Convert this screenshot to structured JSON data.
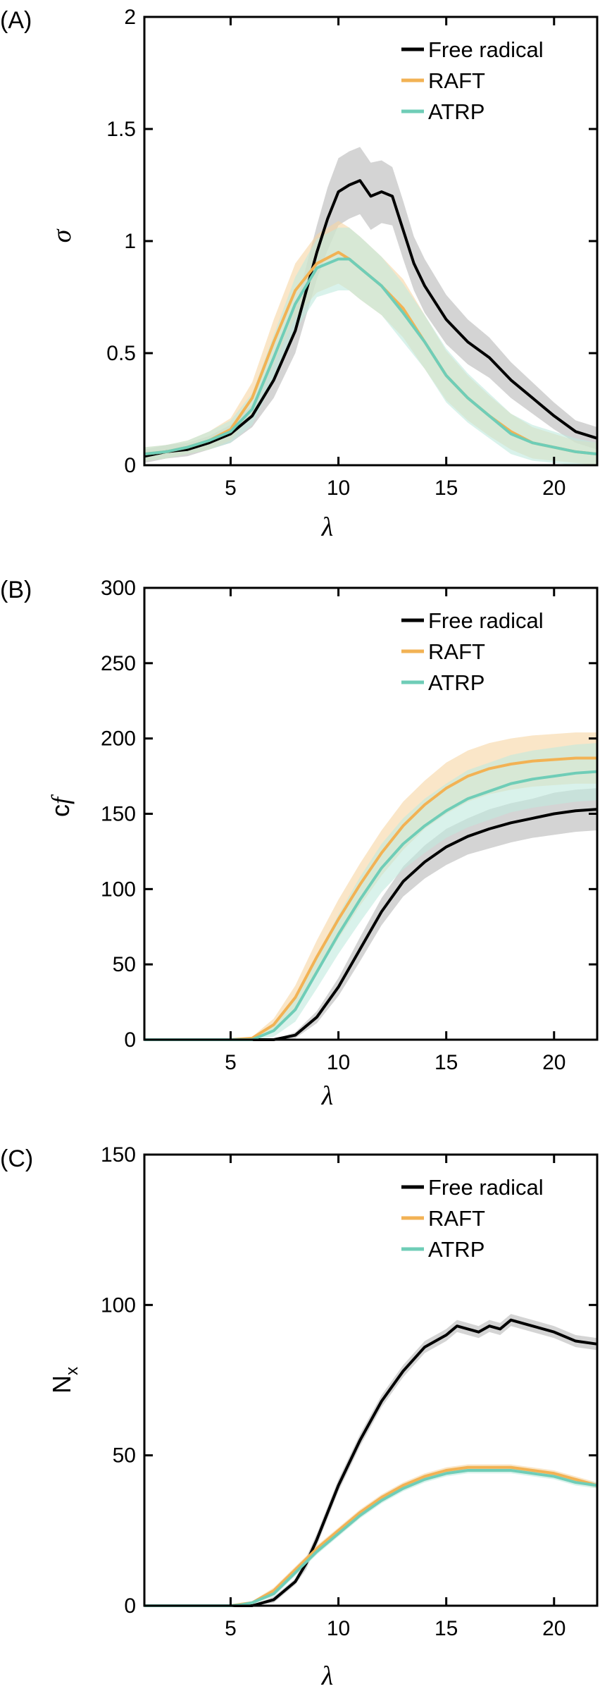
{
  "colors": {
    "free_radical": "#000000",
    "raft": "#f2b254",
    "atrp": "#6fcdb7",
    "free_radical_band": "#b8b8b8",
    "raft_band": "#f7d6a4",
    "atrp_band": "#bfe9de"
  },
  "chart_data": [
    {
      "panel": "(A)",
      "type": "line",
      "ylabel": "σ",
      "xlabel": "λ",
      "xlim": [
        1,
        22
      ],
      "ylim": [
        0,
        2
      ],
      "xticks": [
        "5",
        "10",
        "15",
        "20"
      ],
      "yticks": [
        "0",
        "0.5",
        "1",
        "1.5",
        "2"
      ],
      "legend_position": "top-right",
      "series": [
        {
          "name": "Free radical",
          "color": "#000000",
          "x": [
            1,
            2,
            3,
            4,
            5,
            6,
            7,
            8,
            9,
            9.5,
            10,
            10.5,
            11,
            11.5,
            12,
            12.5,
            13,
            13.5,
            14,
            15,
            16,
            17,
            18,
            19,
            20,
            21,
            22
          ],
          "y": [
            0.04,
            0.06,
            0.07,
            0.1,
            0.14,
            0.22,
            0.38,
            0.6,
            0.95,
            1.1,
            1.22,
            1.25,
            1.27,
            1.2,
            1.22,
            1.2,
            1.05,
            0.9,
            0.8,
            0.65,
            0.55,
            0.48,
            0.38,
            0.3,
            0.22,
            0.15,
            0.12
          ],
          "err": [
            0.03,
            0.03,
            0.03,
            0.03,
            0.04,
            0.05,
            0.08,
            0.1,
            0.12,
            0.14,
            0.15,
            0.15,
            0.15,
            0.15,
            0.14,
            0.13,
            0.13,
            0.12,
            0.12,
            0.11,
            0.1,
            0.09,
            0.08,
            0.07,
            0.06,
            0.05,
            0.05
          ]
        },
        {
          "name": "RAFT",
          "color": "#f2b254",
          "x": [
            1,
            2,
            3,
            4,
            5,
            6,
            7,
            8,
            9,
            10,
            10.5,
            11,
            12,
            13,
            14,
            15,
            16,
            17,
            18,
            19,
            20,
            21,
            22
          ],
          "y": [
            0.05,
            0.06,
            0.08,
            0.11,
            0.16,
            0.3,
            0.55,
            0.78,
            0.9,
            0.95,
            0.92,
            0.88,
            0.8,
            0.7,
            0.55,
            0.4,
            0.3,
            0.22,
            0.15,
            0.1,
            0.08,
            0.06,
            0.05
          ],
          "err": [
            0.03,
            0.03,
            0.03,
            0.04,
            0.05,
            0.07,
            0.1,
            0.12,
            0.13,
            0.14,
            0.14,
            0.14,
            0.13,
            0.13,
            0.12,
            0.11,
            0.1,
            0.09,
            0.08,
            0.07,
            0.06,
            0.05,
            0.05
          ]
        },
        {
          "name": "ATRP",
          "color": "#6fcdb7",
          "x": [
            1,
            2,
            3,
            4,
            5,
            6,
            7,
            8,
            9,
            10,
            10.5,
            11,
            12,
            13,
            14,
            15,
            16,
            17,
            18,
            19,
            20,
            21,
            22
          ],
          "y": [
            0.05,
            0.06,
            0.08,
            0.11,
            0.15,
            0.25,
            0.48,
            0.72,
            0.88,
            0.92,
            0.92,
            0.88,
            0.8,
            0.68,
            0.55,
            0.4,
            0.3,
            0.22,
            0.14,
            0.1,
            0.08,
            0.06,
            0.05
          ],
          "err": [
            0.03,
            0.03,
            0.03,
            0.04,
            0.05,
            0.07,
            0.1,
            0.12,
            0.13,
            0.14,
            0.14,
            0.14,
            0.13,
            0.13,
            0.12,
            0.12,
            0.11,
            0.1,
            0.09,
            0.08,
            0.07,
            0.06,
            0.05
          ]
        }
      ]
    },
    {
      "panel": "(B)",
      "type": "line",
      "ylabel": "cf",
      "xlabel": "λ",
      "xlim": [
        1,
        22
      ],
      "ylim": [
        0,
        300
      ],
      "xticks": [
        "5",
        "10",
        "15",
        "20"
      ],
      "yticks": [
        "0",
        "50",
        "100",
        "150",
        "200",
        "250",
        "300"
      ],
      "legend_position": "top-right",
      "series": [
        {
          "name": "Free radical",
          "color": "#000000",
          "x": [
            1,
            5,
            6,
            7,
            8,
            9,
            10,
            11,
            12,
            13,
            14,
            15,
            16,
            17,
            18,
            19,
            20,
            21,
            22
          ],
          "y": [
            0,
            0,
            0,
            0,
            3,
            15,
            35,
            60,
            85,
            105,
            118,
            128,
            135,
            140,
            144,
            147,
            150,
            152,
            153
          ],
          "err": [
            0,
            0,
            0,
            0,
            2,
            4,
            6,
            8,
            9,
            10,
            11,
            12,
            12,
            13,
            13,
            13,
            14,
            14,
            14
          ]
        },
        {
          "name": "RAFT",
          "color": "#f2b254",
          "x": [
            1,
            5,
            6,
            7,
            8,
            9,
            10,
            11,
            12,
            13,
            14,
            15,
            16,
            17,
            18,
            19,
            20,
            21,
            22
          ],
          "y": [
            0,
            0,
            1,
            10,
            28,
            55,
            80,
            103,
            124,
            142,
            156,
            167,
            175,
            180,
            183,
            185,
            186,
            187,
            187
          ],
          "err": [
            0,
            0,
            1,
            4,
            8,
            11,
            13,
            14,
            15,
            16,
            16,
            17,
            17,
            17,
            17,
            17,
            17,
            17,
            17
          ]
        },
        {
          "name": "ATRP",
          "color": "#6fcdb7",
          "x": [
            1,
            5,
            6,
            7,
            8,
            9,
            10,
            11,
            12,
            13,
            14,
            15,
            16,
            17,
            18,
            19,
            20,
            21,
            22
          ],
          "y": [
            0,
            0,
            0,
            6,
            20,
            45,
            70,
            93,
            114,
            130,
            142,
            152,
            160,
            165,
            170,
            173,
            175,
            177,
            178
          ],
          "err": [
            0,
            0,
            1,
            4,
            8,
            11,
            13,
            15,
            16,
            17,
            18,
            18,
            19,
            19,
            19,
            19,
            19,
            19,
            19
          ]
        }
      ]
    },
    {
      "panel": "(C)",
      "type": "line",
      "ylabel": "N",
      "ylabel_subscript": "x",
      "xlabel": "λ",
      "xlim": [
        1,
        22
      ],
      "ylim": [
        0,
        150
      ],
      "xticks": [
        "5",
        "10",
        "15",
        "20"
      ],
      "yticks": [
        "0",
        "50",
        "100",
        "150"
      ],
      "legend_position": "top-right",
      "series": [
        {
          "name": "Free radical",
          "color": "#000000",
          "x": [
            1,
            5,
            6,
            7,
            8,
            8.5,
            9,
            10,
            11,
            12,
            13,
            14,
            15,
            15.5,
            16,
            16.5,
            17,
            17.5,
            18,
            18.5,
            19,
            20,
            21,
            22
          ],
          "y": [
            0,
            0,
            0,
            2,
            8,
            14,
            22,
            40,
            55,
            68,
            78,
            86,
            90,
            93,
            92,
            91,
            93,
            92,
            95,
            94,
            93,
            91,
            88,
            87
          ],
          "err": [
            0,
            0,
            0,
            1,
            1,
            2,
            2,
            2,
            2,
            2,
            2,
            2,
            2,
            2,
            2,
            2,
            2,
            2,
            2,
            2,
            2,
            2,
            2,
            2
          ]
        },
        {
          "name": "RAFT",
          "color": "#f2b254",
          "x": [
            1,
            5,
            5.5,
            6,
            7,
            8,
            9,
            10,
            11,
            12,
            13,
            14,
            15,
            16,
            17,
            18,
            19,
            20,
            21,
            22
          ],
          "y": [
            0,
            0,
            0.5,
            1,
            5,
            12,
            19,
            25,
            31,
            36,
            40,
            43,
            45,
            46,
            46,
            46,
            45,
            44,
            42,
            40
          ],
          "err": [
            0,
            0,
            0.5,
            0.5,
            1,
            1,
            1,
            1,
            1,
            1,
            1,
            1,
            1,
            1,
            1,
            1,
            1,
            1,
            1,
            1
          ]
        },
        {
          "name": "ATRP",
          "color": "#6fcdb7",
          "x": [
            1,
            5,
            5.5,
            6,
            7,
            8,
            9,
            10,
            11,
            12,
            13,
            14,
            15,
            16,
            17,
            18,
            19,
            20,
            21,
            22
          ],
          "y": [
            0,
            0,
            0.3,
            1,
            4,
            11,
            18,
            24,
            30,
            35,
            39,
            42,
            44,
            45,
            45,
            45,
            44,
            43,
            41,
            40
          ],
          "err": [
            0,
            0,
            0.3,
            0.5,
            1,
            1,
            1,
            1,
            1,
            1,
            1,
            1,
            1,
            1,
            1,
            1,
            1,
            1,
            1,
            1
          ]
        }
      ]
    }
  ]
}
